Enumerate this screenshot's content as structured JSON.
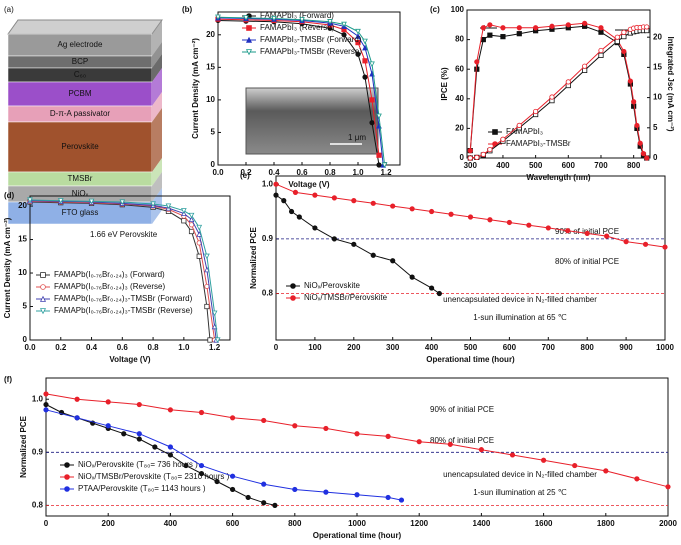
{
  "device_stack": {
    "panel_label": "(a)",
    "layers": [
      {
        "label": "Ag electrode",
        "color": "#9a9a9a"
      },
      {
        "label": "BCP",
        "color": "#6e6e6e"
      },
      {
        "label": "C₆₀",
        "color": "#3a3a3a"
      },
      {
        "label": "PCBM",
        "color": "#9b4fc9"
      },
      {
        "label": "D-π-A passivator",
        "color": "#e7a0b8"
      },
      {
        "label": "Perovskite",
        "color": "#a0522d"
      },
      {
        "label": "TMSBr",
        "color": "#b9dca0"
      },
      {
        "label": "NiOₓ",
        "color": "#a9a9a9"
      },
      {
        "label": "FTO glass",
        "color": "#8fb0e6"
      }
    ]
  },
  "chart_data": [
    {
      "type": "line",
      "panel_label": "(b)",
      "xlabel": "Voltage (V)",
      "ylabel": "Current Density (mA cm⁻²)",
      "inset_scale_label": "1 μm",
      "xlim": [
        0,
        1.3
      ],
      "ylim": [
        0,
        23.5
      ],
      "xticks": [
        {
          "value": 0,
          "label": "0.0"
        },
        0.2,
        0.4,
        0.6,
        0.8,
        {
          "value": 1,
          "label": "1.0"
        },
        1.2
      ],
      "yticks": [
        0,
        5,
        10,
        15,
        20
      ],
      "series": [
        {
          "name": "FAMAPbI₃ (Forward)",
          "color": "#111111",
          "marker": "circle",
          "x": [
            0,
            0.2,
            0.4,
            0.6,
            0.8,
            0.9,
            1.0,
            1.05,
            1.1,
            1.15
          ],
          "values": [
            22.2,
            22.1,
            22.0,
            21.7,
            21.0,
            20.0,
            17.0,
            13.5,
            6.5,
            0
          ]
        },
        {
          "name": "FAMAPbI₃ (Reverse)",
          "color": "#e8202a",
          "marker": "square",
          "x": [
            0,
            0.2,
            0.4,
            0.6,
            0.8,
            0.9,
            1.0,
            1.05,
            1.1,
            1.15
          ],
          "values": [
            22.4,
            22.3,
            22.2,
            22.0,
            21.5,
            20.8,
            18.8,
            16.0,
            10.0,
            1.5
          ]
        },
        {
          "name": "FAMAPbI₃-TMSBr (Forward)",
          "color": "#2030c0",
          "marker": "triangle",
          "x": [
            0,
            0.2,
            0.4,
            0.6,
            0.8,
            0.9,
            1.0,
            1.05,
            1.1,
            1.15,
            1.18
          ],
          "values": [
            22.6,
            22.5,
            22.4,
            22.2,
            21.8,
            21.3,
            19.8,
            18.0,
            14.0,
            6.0,
            0
          ]
        },
        {
          "name": "FAMAPbI₃-TMSBr (Reverse)",
          "color": "#1a9a8a",
          "marker": "triangle-down",
          "open": true,
          "x": [
            0,
            0.2,
            0.4,
            0.6,
            0.8,
            0.9,
            1.0,
            1.05,
            1.1,
            1.15,
            1.19
          ],
          "values": [
            22.7,
            22.6,
            22.5,
            22.3,
            22.0,
            21.6,
            20.5,
            19.0,
            15.5,
            7.5,
            0
          ]
        }
      ]
    },
    {
      "type": "line",
      "panel_label": "(c)",
      "xlabel": "Wavelength (nm)",
      "ylabel": "IPCE (%)",
      "y2label": "Integrated Jsc (mA cm⁻²)",
      "xlim": [
        290,
        850
      ],
      "ylim": [
        0,
        100
      ],
      "y2lim": [
        0,
        24.5
      ],
      "xticks": [
        300,
        400,
        500,
        600,
        700,
        800
      ],
      "yticks": [
        0,
        20,
        40,
        60,
        80,
        100
      ],
      "y2ticks": [
        0,
        5,
        10,
        15,
        20
      ],
      "series": [
        {
          "name": "FAMAPbI₃",
          "color": "#111111",
          "marker": "square",
          "x": [
            300,
            320,
            340,
            360,
            400,
            450,
            500,
            550,
            600,
            650,
            700,
            750,
            770,
            790,
            800,
            810,
            820,
            830,
            840
          ],
          "values": [
            5,
            60,
            80,
            83,
            82,
            84,
            86,
            87,
            88,
            89,
            85,
            78,
            70,
            50,
            35,
            20,
            8,
            2,
            0
          ]
        },
        {
          "name": "FAMAPbI₃-TMSBr",
          "color": "#e8202a",
          "marker": "circle",
          "x": [
            300,
            320,
            340,
            360,
            400,
            450,
            500,
            550,
            600,
            650,
            700,
            750,
            770,
            790,
            800,
            810,
            820,
            830,
            840
          ],
          "values": [
            5,
            65,
            88,
            90,
            88,
            88,
            88,
            89,
            90,
            91,
            88,
            80,
            72,
            52,
            38,
            22,
            10,
            3,
            0
          ]
        },
        {
          "color": "#111111",
          "marker": "square",
          "open": true,
          "axis": "y2",
          "x": [
            300,
            320,
            340,
            360,
            400,
            450,
            500,
            550,
            600,
            650,
            700,
            750,
            770,
            790,
            800,
            810,
            820,
            830,
            840
          ],
          "values": [
            0,
            0.1,
            0.5,
            1.2,
            2.8,
            5.0,
            7.2,
            9.5,
            12.0,
            14.5,
            17.0,
            19.3,
            20.1,
            20.7,
            20.9,
            21.0,
            21.1,
            21.1,
            21.1
          ]
        },
        {
          "color": "#e8202a",
          "marker": "circle",
          "open": true,
          "axis": "y2",
          "x": [
            300,
            320,
            340,
            360,
            400,
            450,
            500,
            550,
            600,
            650,
            700,
            750,
            770,
            790,
            800,
            810,
            820,
            830,
            840
          ],
          "values": [
            0,
            0.1,
            0.6,
            1.4,
            3.1,
            5.4,
            7.7,
            10.1,
            12.6,
            15.2,
            17.8,
            20.0,
            20.8,
            21.3,
            21.5,
            21.6,
            21.6,
            21.7,
            21.7
          ]
        }
      ]
    },
    {
      "type": "line",
      "panel_label": "(d)",
      "title": "1.66 eV Perovskite",
      "xlabel": "Voltage (V)",
      "ylabel": "Current Density (mA cm⁻²)",
      "xlim": [
        0,
        1.3
      ],
      "ylim": [
        0,
        21.5
      ],
      "xticks": [
        {
          "value": 0,
          "label": "0.0"
        },
        0.2,
        0.4,
        0.6,
        0.8,
        {
          "value": 1,
          "label": "1.0"
        },
        1.2
      ],
      "yticks": [
        0,
        5,
        10,
        15,
        20
      ],
      "series": [
        {
          "name": "FAMAPb(I₀.₇₆Br₀.₂₄)₃ (Forward)",
          "color": "#333333",
          "marker": "square",
          "open": true,
          "x": [
            0,
            0.2,
            0.4,
            0.6,
            0.8,
            0.9,
            1.0,
            1.05,
            1.1,
            1.15,
            1.17
          ],
          "values": [
            20.6,
            20.5,
            20.4,
            20.2,
            19.8,
            19.2,
            17.8,
            16.2,
            12.5,
            5.0,
            0
          ]
        },
        {
          "name": "FAMAPb(I₀.₇₆Br₀.₂₄)₃ (Reverse)",
          "color": "#e05050",
          "marker": "circle",
          "open": true,
          "x": [
            0,
            0.2,
            0.4,
            0.6,
            0.8,
            0.9,
            1.0,
            1.05,
            1.1,
            1.15,
            1.2
          ],
          "values": [
            20.7,
            20.6,
            20.5,
            20.3,
            20.0,
            19.5,
            18.5,
            17.2,
            14.5,
            8.0,
            0
          ]
        },
        {
          "name": "FAMAPb(I₀.₇₆Br₀.₂₄)₃-TMSBr (Forward)",
          "color": "#4040b0",
          "marker": "triangle",
          "open": true,
          "x": [
            0,
            0.2,
            0.4,
            0.6,
            0.8,
            0.9,
            1.0,
            1.05,
            1.1,
            1.15,
            1.2,
            1.21
          ],
          "values": [
            20.8,
            20.7,
            20.6,
            20.4,
            20.1,
            19.7,
            18.9,
            18.0,
            15.8,
            10.5,
            2.0,
            0
          ]
        },
        {
          "name": "FAMAPb(I₀.₇₆Br₀.₂₄)₃-TMSBr (Reverse)",
          "color": "#30a0a0",
          "marker": "triangle-down",
          "open": true,
          "x": [
            0,
            0.2,
            0.4,
            0.6,
            0.8,
            0.9,
            1.0,
            1.05,
            1.1,
            1.15,
            1.2,
            1.22
          ],
          "values": [
            20.9,
            20.8,
            20.7,
            20.6,
            20.3,
            20.0,
            19.3,
            18.6,
            16.8,
            12.5,
            4.0,
            0
          ]
        }
      ]
    },
    {
      "type": "line",
      "panel_label": "(e)",
      "xlabel": "Operational time (hour)",
      "ylabel": "Normalized PCE",
      "xlim": [
        0,
        1000
      ],
      "ylim": [
        0.715,
        1.015
      ],
      "xticks": [
        0,
        100,
        200,
        300,
        400,
        500,
        600,
        700,
        800,
        900,
        1000
      ],
      "yticks": [
        0.8,
        0.9,
        {
          "value": 1,
          "label": "1.0"
        }
      ],
      "ref_lines": [
        {
          "value": 0.9,
          "label": "90% of initial PCE",
          "color": "#1a1a80"
        },
        {
          "value": 0.8,
          "label": "80% of initial PCE",
          "color": "#e8202a"
        }
      ],
      "annotations": [
        "unencapsulated device in N₂-filled chamber",
        "1-sun illumination at 65 ℃"
      ],
      "series": [
        {
          "name": "NiOₓ/Perovskite",
          "color": "#111111",
          "marker": "circle",
          "x": [
            0,
            20,
            40,
            60,
            100,
            150,
            200,
            250,
            300,
            350,
            400,
            420
          ],
          "values": [
            0.98,
            0.97,
            0.95,
            0.94,
            0.92,
            0.9,
            0.89,
            0.87,
            0.86,
            0.83,
            0.81,
            0.8
          ]
        },
        {
          "name": "NiOₓ/TMSBr/Perovskite",
          "color": "#e8202a",
          "marker": "circle",
          "x": [
            0,
            50,
            100,
            150,
            200,
            250,
            300,
            350,
            400,
            450,
            500,
            550,
            600,
            650,
            700,
            750,
            800,
            850,
            900,
            950,
            1000
          ],
          "values": [
            1.0,
            0.985,
            0.98,
            0.975,
            0.97,
            0.965,
            0.96,
            0.955,
            0.95,
            0.945,
            0.94,
            0.935,
            0.93,
            0.925,
            0.92,
            0.915,
            0.91,
            0.905,
            0.895,
            0.89,
            0.885
          ]
        }
      ]
    },
    {
      "type": "line",
      "panel_label": "(f)",
      "xlabel": "Operational time (hour)",
      "ylabel": "Normalized PCE",
      "xlim": [
        0,
        2000
      ],
      "ylim": [
        0.78,
        1.04
      ],
      "xticks": [
        0,
        200,
        400,
        600,
        800,
        1000,
        1200,
        1400,
        1600,
        1800,
        2000
      ],
      "yticks": [
        0.8,
        0.9,
        {
          "value": 1,
          "label": "1.0"
        }
      ],
      "ref_lines": [
        {
          "value": 0.9,
          "label": "90% of initial PCE",
          "color": "#1a1a80"
        },
        {
          "value": 0.8,
          "label": "80% of initial PCE",
          "color": "#e8202a"
        }
      ],
      "annotations": [
        "unencapsulated device in N₂-filled chamber",
        "1-sun illumination at 25 ℃"
      ],
      "series": [
        {
          "name": "NiOₓ/Perovskite  (T₈₀= 736 hours )",
          "color": "#111111",
          "marker": "circle",
          "x": [
            0,
            50,
            100,
            150,
            200,
            250,
            300,
            350,
            400,
            450,
            500,
            550,
            600,
            650,
            700,
            736
          ],
          "values": [
            0.99,
            0.975,
            0.965,
            0.955,
            0.945,
            0.935,
            0.925,
            0.91,
            0.895,
            0.875,
            0.86,
            0.845,
            0.83,
            0.815,
            0.805,
            0.8
          ]
        },
        {
          "name": "NiOₓ/TMSBr/Perovskite (T₈₀= 2310 hours )",
          "color": "#e8202a",
          "marker": "circle",
          "x": [
            0,
            100,
            200,
            300,
            400,
            500,
            600,
            700,
            800,
            900,
            1000,
            1100,
            1200,
            1300,
            1400,
            1500,
            1600,
            1700,
            1800,
            1900,
            2000
          ],
          "values": [
            1.01,
            1.0,
            0.995,
            0.99,
            0.98,
            0.975,
            0.965,
            0.96,
            0.95,
            0.945,
            0.935,
            0.93,
            0.92,
            0.915,
            0.905,
            0.895,
            0.885,
            0.875,
            0.865,
            0.85,
            0.835
          ]
        },
        {
          "name": "PTAA/Perovskite  (T₈₀= 1143 hours )",
          "color": "#2030e0",
          "marker": "circle",
          "x": [
            0,
            100,
            200,
            300,
            400,
            500,
            600,
            700,
            800,
            900,
            1000,
            1100,
            1143
          ],
          "values": [
            0.98,
            0.965,
            0.95,
            0.935,
            0.91,
            0.875,
            0.855,
            0.84,
            0.83,
            0.825,
            0.82,
            0.815,
            0.81
          ]
        }
      ]
    }
  ]
}
